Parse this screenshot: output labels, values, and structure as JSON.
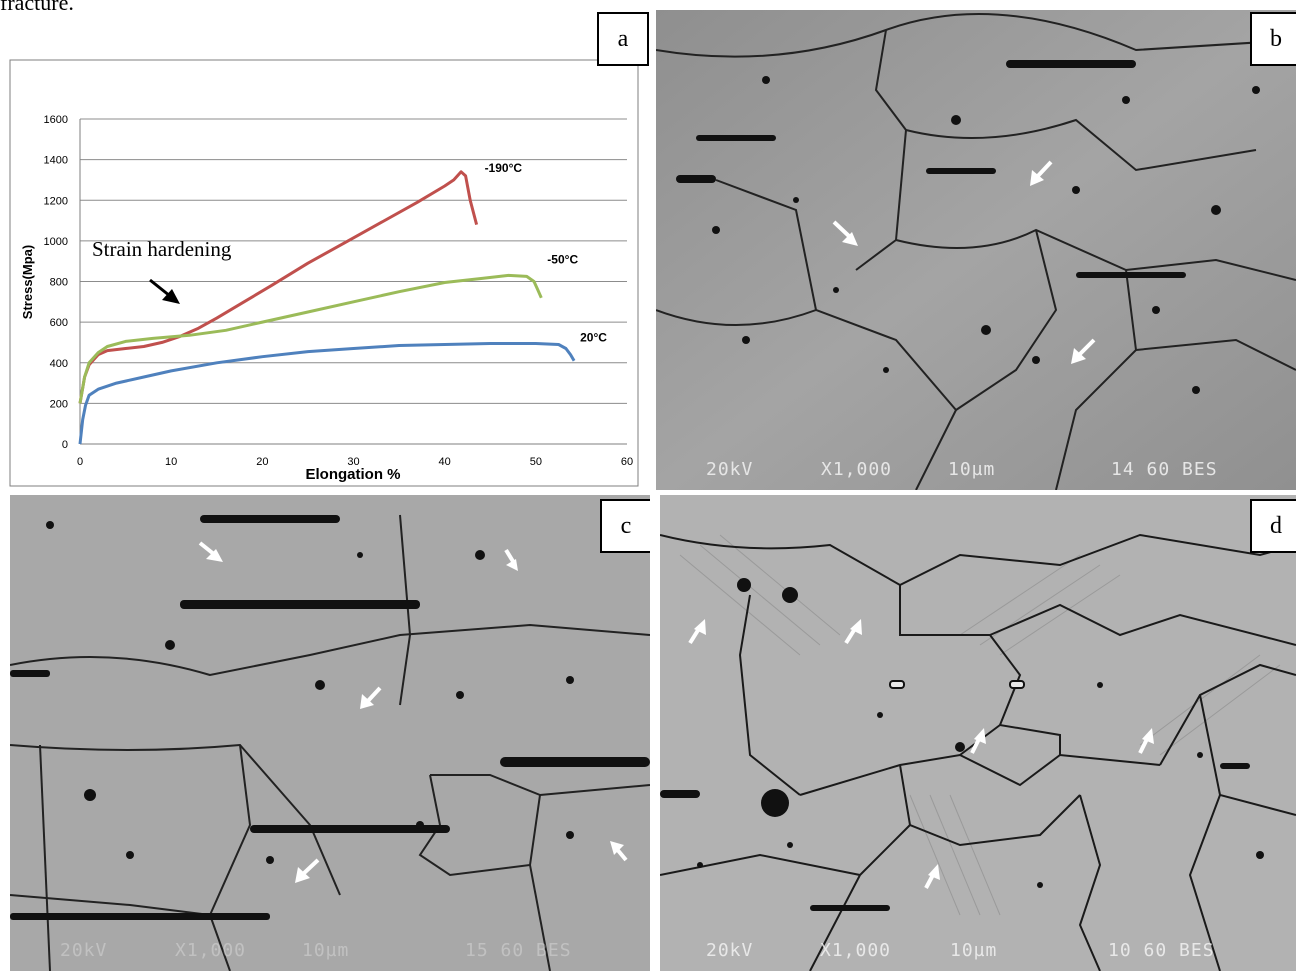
{
  "caption_fragment": "fracture.",
  "panels": {
    "a": {
      "label": "a"
    },
    "b": {
      "label": "b",
      "footer": {
        "kv": "20kV",
        "mag": "X1,000",
        "scale": "10µm",
        "id": "14 60 BES"
      }
    },
    "c": {
      "label": "c",
      "footer": {
        "kv": "20kV",
        "mag": "X1,000",
        "scale": "10µm",
        "id": "15 60 BES"
      }
    },
    "d": {
      "label": "d",
      "footer": {
        "kv": "20kV",
        "mag": "X1,000",
        "scale": "10µm",
        "id": "10 60 BES"
      }
    }
  },
  "chart_data": {
    "type": "line",
    "xlabel": "Elongation %",
    "ylabel": "Stress(Mpa)",
    "xlim": [
      0,
      60
    ],
    "ylim": [
      0,
      1600
    ],
    "xticks": [
      0,
      10,
      20,
      30,
      40,
      50,
      60
    ],
    "yticks": [
      0,
      200,
      400,
      600,
      800,
      1000,
      1200,
      1400,
      1600
    ],
    "grid": "horizontal",
    "annotation": "Strain hardening",
    "series": [
      {
        "name": "-190°C",
        "color": "#c0504d",
        "x": [
          0,
          0.5,
          1,
          2,
          3,
          5,
          7,
          9,
          11,
          13,
          15,
          18,
          21,
          25,
          29,
          33,
          37,
          40,
          41,
          41.8,
          42.3,
          42.8,
          43.5
        ],
        "y": [
          200,
          330,
          390,
          440,
          460,
          470,
          480,
          500,
          530,
          570,
          620,
          700,
          780,
          890,
          990,
          1090,
          1190,
          1270,
          1300,
          1340,
          1320,
          1200,
          1080
        ]
      },
      {
        "name": "-50°C",
        "color": "#9bbb59",
        "x": [
          0,
          0.5,
          1,
          2,
          3,
          5,
          8,
          12,
          16,
          20,
          25,
          30,
          35,
          40,
          44,
          47,
          49,
          49.8,
          50.2,
          50.6
        ],
        "y": [
          200,
          330,
          400,
          450,
          480,
          505,
          520,
          535,
          560,
          600,
          650,
          700,
          750,
          795,
          815,
          830,
          825,
          800,
          760,
          720
        ]
      },
      {
        "name": "20°C",
        "color": "#4f81bd",
        "x": [
          0,
          0.3,
          0.6,
          1,
          2,
          4,
          7,
          10,
          15,
          20,
          25,
          30,
          35,
          40,
          45,
          50,
          52.5,
          53.3,
          53.8,
          54.2
        ],
        "y": [
          0,
          120,
          190,
          240,
          270,
          300,
          330,
          360,
          400,
          430,
          455,
          470,
          485,
          490,
          495,
          495,
          490,
          470,
          440,
          410
        ]
      }
    ]
  }
}
